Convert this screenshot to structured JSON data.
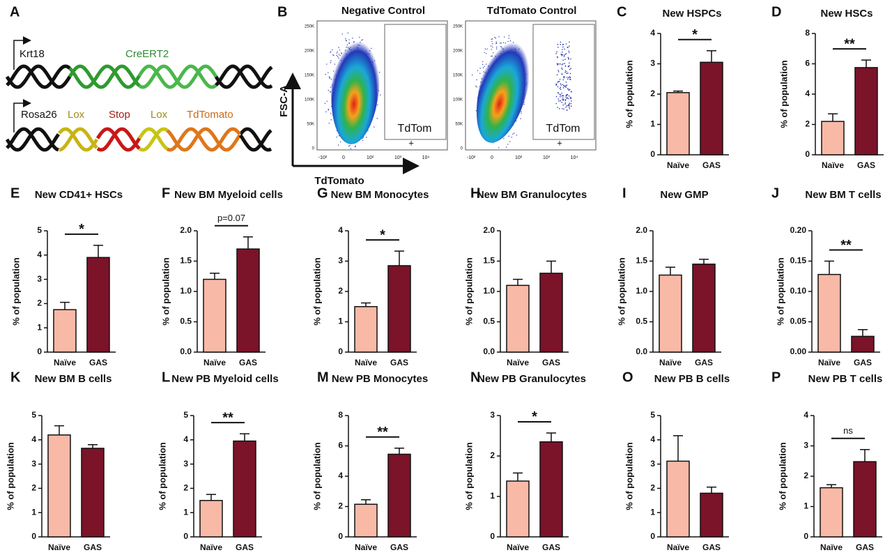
{
  "diagram": {
    "panel": "A",
    "labels": [
      "Krt18",
      "CreERT2",
      "Rosa26",
      "Lox",
      "Stop",
      "Lox",
      "TdTomato"
    ]
  },
  "flow": {
    "panel": "B",
    "ylabel": "FSC-A",
    "xlabel": "TdTomato",
    "yticks": [
      "250K",
      "200K",
      "150K",
      "100K",
      "50K",
      "0"
    ],
    "xticks": [
      "-10²",
      "0",
      "10²",
      "10³",
      "10⁴"
    ],
    "plots": [
      {
        "title": "Negative Control",
        "gate": "TdTom",
        "gate_sign": "+"
      },
      {
        "title": "TdTomato Control",
        "gate": "TdTom",
        "gate_sign": "+"
      }
    ]
  },
  "chart_data": [
    {
      "type": "bar",
      "panel": "C",
      "title": "New HSPCs",
      "ylabel": "% of population",
      "categories": [
        "Naïve",
        "GAS"
      ],
      "values": [
        2.05,
        3.05
      ],
      "errors": [
        0.05,
        0.38
      ],
      "colors": [
        "#f9b9a7",
        "#7b1329"
      ],
      "ylim": [
        0,
        4
      ],
      "yticks": [
        0,
        1,
        2,
        3,
        4
      ],
      "annotation": "*"
    },
    {
      "type": "bar",
      "panel": "D",
      "title": "New HSCs",
      "ylabel": "% of population",
      "categories": [
        "Naïve",
        "GAS"
      ],
      "values": [
        2.2,
        5.75
      ],
      "errors": [
        0.5,
        0.5
      ],
      "colors": [
        "#f9b9a7",
        "#7b1329"
      ],
      "ylim": [
        0,
        8
      ],
      "yticks": [
        0,
        2,
        4,
        6,
        8
      ],
      "annotation": "**"
    },
    {
      "type": "bar",
      "panel": "E",
      "title": "New CD41+ HSCs",
      "ylabel": "% of population",
      "categories": [
        "Naïve",
        "GAS"
      ],
      "values": [
        1.75,
        3.9
      ],
      "errors": [
        0.3,
        0.5
      ],
      "colors": [
        "#f9b9a7",
        "#7b1329"
      ],
      "ylim": [
        0,
        5
      ],
      "yticks": [
        0,
        1,
        2,
        3,
        4,
        5
      ],
      "annotation": "*"
    },
    {
      "type": "bar",
      "panel": "F",
      "title": "New BM Myeloid cells",
      "ylabel": "% of population",
      "categories": [
        "Naïve",
        "GAS"
      ],
      "values": [
        1.2,
        1.7
      ],
      "errors": [
        0.1,
        0.2
      ],
      "colors": [
        "#f9b9a7",
        "#7b1329"
      ],
      "ylim": [
        0,
        2
      ],
      "yticks": [
        {
          "value": 0,
          "label": "0.0"
        },
        0.5,
        {
          "value": 1,
          "label": "1.0"
        },
        1.5,
        {
          "value": 2,
          "label": "2.0"
        }
      ],
      "annotation": "p=0.07"
    },
    {
      "type": "bar",
      "panel": "G",
      "title": "New BM Monocytes",
      "ylabel": "% of population",
      "categories": [
        "Naïve",
        "GAS"
      ],
      "values": [
        1.5,
        2.85
      ],
      "errors": [
        0.12,
        0.48
      ],
      "colors": [
        "#f9b9a7",
        "#7b1329"
      ],
      "ylim": [
        0,
        4
      ],
      "yticks": [
        0,
        1,
        2,
        3,
        4
      ],
      "annotation": "*"
    },
    {
      "type": "bar",
      "panel": "H",
      "title": "New BM Granulocytes",
      "ylabel": "% of population",
      "categories": [
        "Naïve",
        "GAS"
      ],
      "values": [
        1.1,
        1.3
      ],
      "errors": [
        0.1,
        0.2
      ],
      "colors": [
        "#f9b9a7",
        "#7b1329"
      ],
      "ylim": [
        0,
        2
      ],
      "yticks": [
        {
          "value": 0,
          "label": "0.0"
        },
        0.5,
        {
          "value": 1,
          "label": "1.0"
        },
        1.5,
        {
          "value": 2,
          "label": "2.0"
        }
      ]
    },
    {
      "type": "bar",
      "panel": "I",
      "title": "New GMP",
      "ylabel": "% of population",
      "categories": [
        "Naïve",
        "GAS"
      ],
      "values": [
        1.27,
        1.45
      ],
      "errors": [
        0.13,
        0.08
      ],
      "colors": [
        "#f9b9a7",
        "#7b1329"
      ],
      "ylim": [
        0,
        2
      ],
      "yticks": [
        {
          "value": 0,
          "label": "0.0"
        },
        0.5,
        {
          "value": 1,
          "label": "1.0"
        },
        1.5,
        {
          "value": 2,
          "label": "2.0"
        }
      ]
    },
    {
      "type": "bar",
      "panel": "J",
      "title": "New BM T cells",
      "ylabel": "% of population",
      "categories": [
        "Naïve",
        "GAS"
      ],
      "values": [
        0.128,
        0.026
      ],
      "errors": [
        0.022,
        0.011
      ],
      "colors": [
        "#f9b9a7",
        "#7b1329"
      ],
      "ylim": [
        0,
        0.2
      ],
      "yticks": [
        {
          "value": 0,
          "label": "0.00"
        },
        0.05,
        {
          "value": 0.1,
          "label": "0.10"
        },
        0.15,
        {
          "value": 0.2,
          "label": "0.20"
        }
      ],
      "annotation": "**"
    },
    {
      "type": "bar",
      "panel": "K",
      "title": "New BM B cells",
      "ylabel": "% of population",
      "categories": [
        "Naïve",
        "GAS"
      ],
      "values": [
        4.2,
        3.65
      ],
      "errors": [
        0.38,
        0.15
      ],
      "colors": [
        "#f9b9a7",
        "#7b1329"
      ],
      "ylim": [
        0,
        5
      ],
      "yticks": [
        0,
        1,
        2,
        3,
        4,
        5
      ]
    },
    {
      "type": "bar",
      "panel": "L",
      "title": "New PB Myeloid cells",
      "ylabel": "% of population",
      "categories": [
        "Naïve",
        "GAS"
      ],
      "values": [
        1.5,
        3.95
      ],
      "errors": [
        0.25,
        0.3
      ],
      "colors": [
        "#f9b9a7",
        "#7b1329"
      ],
      "ylim": [
        0,
        5
      ],
      "yticks": [
        0,
        1,
        2,
        3,
        4,
        5
      ],
      "annotation": "**"
    },
    {
      "type": "bar",
      "panel": "M",
      "title": "New PB Monocytes",
      "ylabel": "% of population",
      "categories": [
        "Naïve",
        "GAS"
      ],
      "values": [
        2.15,
        5.45
      ],
      "errors": [
        0.3,
        0.4
      ],
      "colors": [
        "#f9b9a7",
        "#7b1329"
      ],
      "ylim": [
        0,
        8
      ],
      "yticks": [
        0,
        2,
        4,
        6,
        8
      ],
      "annotation": "**"
    },
    {
      "type": "bar",
      "panel": "N",
      "title": "New PB Granulocytes",
      "ylabel": "% of population",
      "categories": [
        "Naïve",
        "GAS"
      ],
      "values": [
        1.38,
        2.35
      ],
      "errors": [
        0.2,
        0.22
      ],
      "colors": [
        "#f9b9a7",
        "#7b1329"
      ],
      "ylim": [
        0,
        3
      ],
      "yticks": [
        0,
        1,
        2,
        3
      ],
      "annotation": "*"
    },
    {
      "type": "bar",
      "panel": "O",
      "title": "New PB B cells",
      "ylabel": "% of population",
      "categories": [
        "Naïve",
        "GAS"
      ],
      "values": [
        3.12,
        1.8
      ],
      "errors": [
        1.05,
        0.25
      ],
      "colors": [
        "#f9b9a7",
        "#7b1329"
      ],
      "ylim": [
        0,
        5
      ],
      "yticks": [
        0,
        1,
        2,
        3,
        4,
        5
      ]
    },
    {
      "type": "bar",
      "panel": "P",
      "title": "New PB T cells",
      "ylabel": "% of population",
      "categories": [
        "Naïve",
        "GAS"
      ],
      "values": [
        1.62,
        2.48
      ],
      "errors": [
        0.1,
        0.4
      ],
      "colors": [
        "#f9b9a7",
        "#7b1329"
      ],
      "ylim": [
        0,
        4
      ],
      "yticks": [
        0,
        1,
        2,
        3,
        4
      ],
      "annotation": "ns"
    }
  ]
}
